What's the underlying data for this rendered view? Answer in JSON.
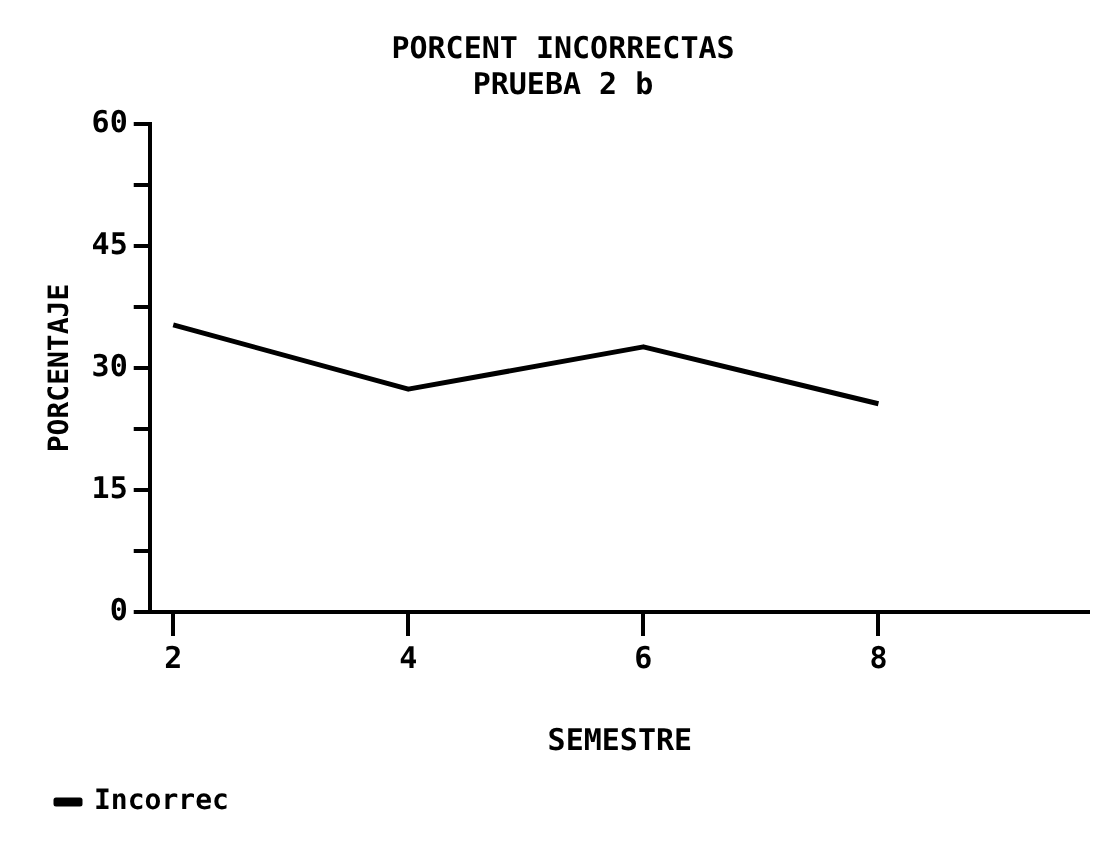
{
  "chart_data": {
    "type": "line",
    "title": "PORCENT INCORRECTAS",
    "subtitle": "PRUEBA 2 b",
    "xlabel": "SEMESTRE",
    "ylabel": "PORCENTAJE",
    "x": [
      2,
      4,
      6,
      8
    ],
    "series": [
      {
        "name": "Incorrec",
        "color": "#000000",
        "values": [
          35.3,
          27.4,
          32.6,
          25.6
        ]
      }
    ],
    "xlim": [
      1.8,
      9.8
    ],
    "xticks": [
      2,
      4,
      6,
      8
    ],
    "ylim": [
      0,
      60
    ],
    "yticks": [
      0,
      {
        "value": 7.5,
        "label": null
      },
      15,
      {
        "value": 22.5,
        "label": null
      },
      30,
      {
        "value": 37.5,
        "label": null
      },
      45,
      {
        "value": 52.5,
        "label": null
      },
      60
    ],
    "grid": false,
    "legend": "bottom left",
    "marker": "none",
    "line_style": "solid"
  }
}
